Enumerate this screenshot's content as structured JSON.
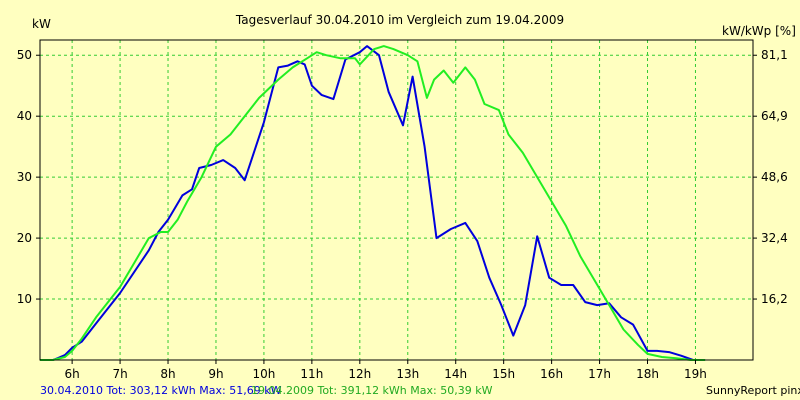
{
  "chart_data": {
    "type": "line",
    "title": "Tagesverlauf 30.04.2010 im Vergleich zum 19.04.2009",
    "ylabel_left": "kW",
    "ylabel_right": "kW/kWp [%]",
    "x_ticks": [
      "6h",
      "7h",
      "8h",
      "9h",
      "10h",
      "11h",
      "12h",
      "13h",
      "14h",
      "15h",
      "16h",
      "17h",
      "18h",
      "19h"
    ],
    "y_ticks_left": [
      "10",
      "20",
      "30",
      "40",
      "50"
    ],
    "y_ticks_right": [
      "16,2",
      "32,4",
      "48,6",
      "64,9",
      "81,1"
    ],
    "xlim": [
      5.33,
      20.2
    ],
    "ylim": [
      0,
      52.5
    ],
    "grid": true,
    "series": [
      {
        "name": "30.04.2010",
        "color": "#0000dd",
        "x": [
          5.33,
          5.6,
          5.7,
          5.85,
          6.0,
          6.2,
          6.5,
          6.8,
          7.0,
          7.3,
          7.6,
          7.8,
          8.0,
          8.15,
          8.3,
          8.5,
          8.65,
          8.9,
          9.15,
          9.4,
          9.6,
          10.0,
          10.3,
          10.5,
          10.7,
          10.85,
          11.0,
          11.2,
          11.45,
          11.7,
          12.0,
          12.15,
          12.4,
          12.6,
          12.9,
          13.1,
          13.35,
          13.6,
          13.9,
          14.2,
          14.45,
          14.7,
          14.95,
          15.2,
          15.45,
          15.7,
          15.95,
          16.2,
          16.45,
          16.7,
          16.95,
          17.2,
          17.45,
          17.7,
          18.0,
          18.2,
          18.45,
          18.7,
          18.95,
          19.2
        ],
        "y": [
          0,
          0,
          0.3,
          0.8,
          2,
          3,
          6,
          9,
          11,
          14.5,
          18,
          21,
          23,
          25,
          27,
          28,
          31.5,
          32,
          32.8,
          31.5,
          29.5,
          39,
          48,
          48.3,
          49,
          48.5,
          45,
          43.5,
          42.8,
          49.3,
          50.5,
          51.5,
          50,
          44,
          38.5,
          46.5,
          35,
          20,
          21.5,
          22.5,
          19.5,
          13.5,
          9,
          4,
          9,
          20.3,
          13.5,
          12.3,
          12.3,
          9.5,
          9,
          9.3,
          7,
          5.8,
          1.5,
          1.5,
          1.3,
          0.7,
          0,
          0
        ]
      },
      {
        "name": "19.04.2009",
        "color": "#22ee22",
        "x": [
          5.33,
          5.6,
          5.85,
          6.0,
          6.2,
          6.5,
          6.8,
          7.0,
          7.3,
          7.6,
          7.85,
          8.0,
          8.2,
          8.4,
          8.7,
          9.0,
          9.3,
          9.6,
          9.9,
          10.3,
          10.6,
          10.9,
          11.1,
          11.3,
          11.6,
          11.9,
          12.0,
          12.3,
          12.5,
          12.7,
          13.0,
          13.2,
          13.4,
          13.55,
          13.75,
          13.95,
          14.2,
          14.4,
          14.6,
          14.9,
          15.1,
          15.4,
          15.7,
          16.0,
          16.3,
          16.6,
          16.9,
          17.2,
          17.5,
          17.8,
          18.0,
          18.3,
          18.6,
          18.9,
          19.2
        ],
        "y": [
          0,
          0,
          0.5,
          1.5,
          3.5,
          7,
          10,
          12,
          16,
          20,
          21,
          21,
          23,
          26,
          30,
          35,
          37,
          40,
          43,
          46,
          48,
          49.5,
          50.5,
          50,
          49.5,
          49.5,
          48.5,
          51,
          51.5,
          51,
          50,
          49,
          43,
          46,
          47.5,
          45.5,
          48,
          46,
          42,
          41,
          37,
          34,
          30,
          26,
          22,
          17,
          13,
          9,
          5,
          2.5,
          1,
          0.5,
          0.3,
          0,
          0
        ]
      }
    ]
  },
  "footer": {
    "series1_label": "30.04.2010 Tot: 303,12 kWh Max: 51,69 kW",
    "series2_label": "19.04.2009 Tot: 391,12 kWh Max: 50,39 kW",
    "credit": "SunnyReport pinxit"
  }
}
